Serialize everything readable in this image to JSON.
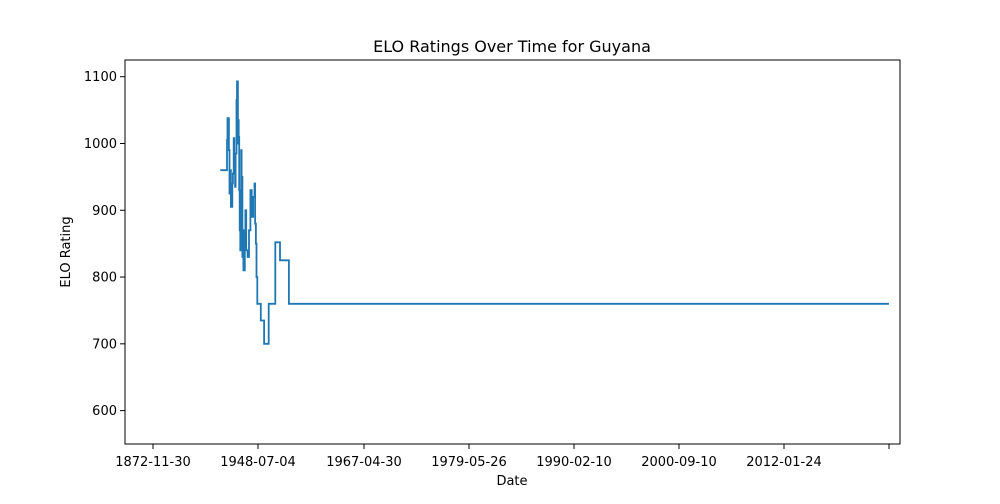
{
  "chart_data": {
    "type": "line",
    "title": "ELO Ratings Over Time for Guyana",
    "xlabel": "Date",
    "ylabel": "ELO Rating",
    "x_tick_labels": [
      "1872-11-30",
      "1948-07-04",
      "1967-04-30",
      "1979-05-26",
      "1990-02-10",
      "2000-09-10",
      "2012-01-24",
      ""
    ],
    "y_ticks": [
      600,
      700,
      800,
      900,
      1000,
      1100
    ],
    "ylim": [
      550,
      1125
    ],
    "grid": false,
    "legend": "none",
    "series": [
      {
        "color": "#1f77b4",
        "step": true,
        "x": [
          "1921-05-01",
          "1925-01-01",
          "1926-03-01",
          "1926-05-01",
          "1926-08-01",
          "1927-06-01",
          "1927-08-01",
          "1928-01-01",
          "1928-06-01",
          "1929-01-01",
          "1930-01-01",
          "1930-06-01",
          "1931-01-01",
          "1931-06-01",
          "1932-01-01",
          "1932-06-01",
          "1933-01-01",
          "1933-06-01",
          "1934-01-01",
          "1934-04-01",
          "1934-08-01",
          "1935-01-01",
          "1935-05-01",
          "1935-10-01",
          "1936-02-01",
          "1936-06-01",
          "1936-09-01",
          "1937-01-01",
          "1937-04-01",
          "1937-08-01",
          "1938-01-01",
          "1938-06-01",
          "1939-01-01",
          "1939-06-01",
          "1940-01-01",
          "1941-01-01",
          "1942-01-01",
          "1943-01-01",
          "1944-01-01",
          "1945-01-01",
          "1946-01-01",
          "1946-06-01",
          "1947-01-01",
          "1947-06-01",
          "1948-01-01",
          "1949-01-01",
          "1949-08-01",
          "1950-06-01",
          "1951-01-01",
          "1951-08-01",
          "1952-06-01",
          "1953-01-01",
          "1954-01-01",
          "1955-01-01",
          "1956-01-01",
          "1957-01-01",
          "1957-06-01",
          "1958-01-01",
          "1958-06-01",
          "1960-01-01",
          "1961-01-01",
          "1962-01-01",
          "1963-01-01",
          "1964-01-01",
          "1965-01-01",
          "1966-01-01",
          "1967-01-01",
          "1968-01-01",
          "1969-01-01",
          "1970-01-01",
          "1971-01-01",
          "1972-01-01",
          "1973-01-01",
          "1974-01-01",
          "1975-01-01",
          "1976-01-01",
          "1976-08-01",
          "1977-01-01",
          "1978-01-01",
          "1979-01-01",
          "1980-01-01",
          "1980-06-01",
          "1981-01-01",
          "1981-06-01",
          "1982-01-01",
          "1983-01-01",
          "1984-01-01",
          "1985-01-01",
          "1986-01-01",
          "1986-06-01",
          "1987-01-01",
          "1987-06-01",
          "1988-01-01",
          "1989-01-01",
          "1990-01-01",
          "1991-01-01",
          "1991-08-01",
          "1992-01-01",
          "1993-01-01",
          "1994-01-01",
          "1995-01-01",
          "1996-01-01",
          "1997-01-01",
          "1998-01-01",
          "1999-01-01",
          "2000-01-01",
          "2001-01-01",
          "2002-01-01",
          "2003-01-01",
          "2004-01-01",
          "2005-01-01",
          "2006-01-01",
          "2007-01-01",
          "2007-06-01",
          "2008-01-01",
          "2008-06-01",
          "2009-01-01",
          "2009-06-01",
          "2010-01-01",
          "2011-01-01",
          "2012-01-01",
          "2012-06-01",
          "2013-01-01",
          "2013-06-01",
          "2014-01-01",
          "2015-01-01",
          "2016-01-01",
          "2017-01-01",
          "2017-06-01",
          "2018-01-01",
          "2018-06-01",
          "2019-01-01",
          "2019-06-01",
          "2020-01-01",
          "2021-01-01",
          "2021-06-01",
          "2022-01-01",
          "2022-06-01",
          "2023-01-01",
          "2023-06-01",
          "2024-01-01"
        ],
        "y": [
          960,
          960,
          1005,
          1005,
          1038,
          1038,
          990,
          925,
          960,
          905,
          940,
          955,
          1008,
          955,
          935,
          985,
          1065,
          1093,
          1000,
          1035,
          1010,
          930,
          870,
          840,
          900,
          990,
          930,
          950,
          830,
          870,
          810,
          810,
          870,
          900,
          840,
          830,
          870,
          930,
          890,
          920,
          940,
          880,
          850,
          800,
          760,
          735,
          700,
          760,
          760,
          852,
          825,
          825,
          760,
          760,
          760,
          760,
          760,
          760,
          760,
          760,
          760,
          760,
          760,
          760,
          760,
          760,
          760,
          760,
          760,
          760,
          760,
          760,
          760,
          760,
          760,
          760,
          760,
          760,
          760,
          760,
          760,
          760,
          760,
          760,
          760,
          760,
          760,
          760,
          760,
          760,
          760,
          760,
          760,
          760,
          760,
          760,
          760,
          760,
          760,
          760,
          760,
          760,
          760,
          760,
          760,
          760,
          760,
          760,
          760,
          760,
          760,
          760,
          760,
          760,
          760,
          760,
          760,
          760,
          760,
          760,
          760,
          760,
          760,
          760,
          760,
          760,
          760,
          760,
          760,
          760,
          760,
          760,
          760,
          760,
          760,
          760,
          760,
          760,
          760,
          760,
          760
        ]
      }
    ]
  }
}
